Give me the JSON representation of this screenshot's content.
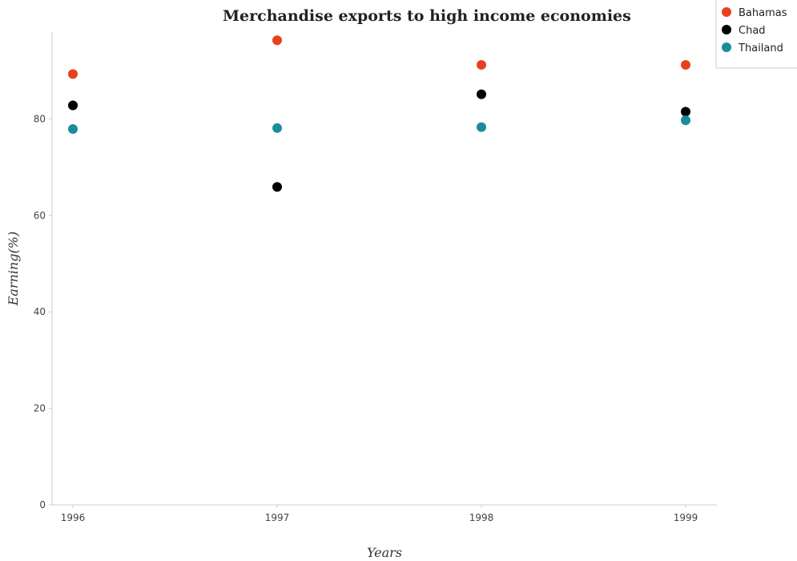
{
  "chart_data": {
    "type": "scatter",
    "title": "Merchandise exports to high income economies",
    "xlabel": "Years",
    "ylabel": "Earning(%)",
    "categories": [
      "1996",
      "1997",
      "1998",
      "1999"
    ],
    "ylim": [
      0,
      98
    ],
    "yticks": [
      0,
      20,
      40,
      60,
      80
    ],
    "ytick_labels": [
      "0",
      "20",
      "40",
      "60",
      "80"
    ],
    "grid": false,
    "legend_position": "top-right",
    "series": [
      {
        "name": "Bahamas",
        "color": "#e8401c",
        "values": [
          89.3,
          96.3,
          91.2,
          91.2
        ]
      },
      {
        "name": "Chad",
        "color": "#000000",
        "values": [
          82.8,
          65.9,
          85.1,
          81.5
        ]
      },
      {
        "name": "Thailand",
        "color": "#1a8c9c",
        "values": [
          77.9,
          78.1,
          78.3,
          79.7
        ]
      }
    ]
  }
}
